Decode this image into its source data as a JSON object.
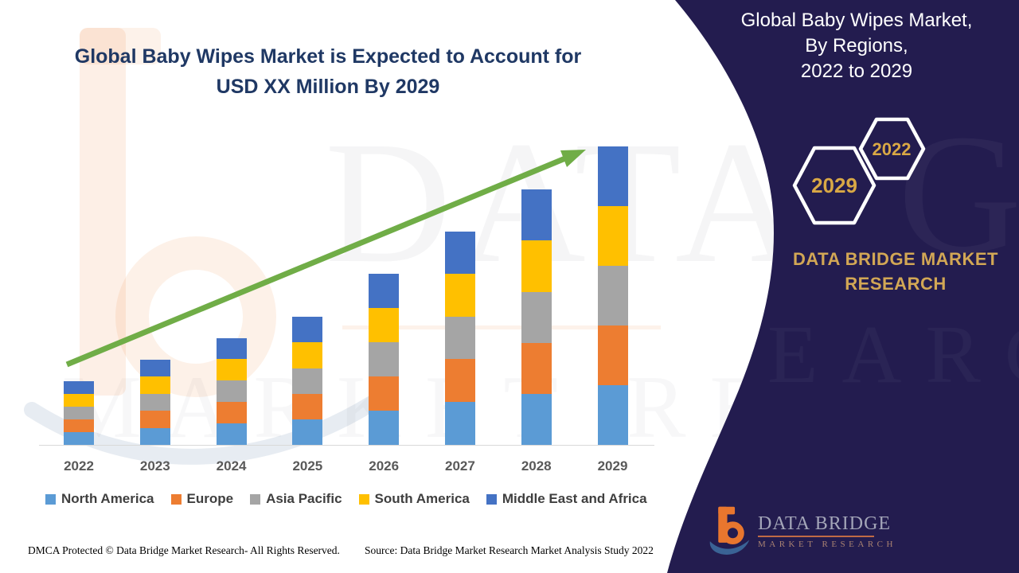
{
  "main_title": {
    "line1": "Global Baby Wipes Market is Expected to Account for",
    "line2": "USD XX Million By 2029"
  },
  "chart_data": {
    "type": "bar",
    "stacked": true,
    "title": "Global Baby Wipes Market is Expected to Account for USD XX Million By 2029",
    "categories": [
      "2022",
      "2023",
      "2024",
      "2025",
      "2026",
      "2027",
      "2028",
      "2029"
    ],
    "stack_order": "bottom-to-top",
    "series": [
      {
        "name": "North America",
        "color": "#5B9BD5",
        "values": [
          16,
          21,
          27,
          32,
          43,
          54,
          64,
          75
        ]
      },
      {
        "name": "Europe",
        "color": "#ED7D31",
        "values": [
          16,
          22,
          27,
          32,
          43,
          54,
          64,
          75
        ]
      },
      {
        "name": "Asia Pacific",
        "color": "#A5A5A5",
        "values": [
          16,
          21,
          27,
          32,
          43,
          53,
          64,
          75
        ]
      },
      {
        "name": "South America",
        "color": "#FFC000",
        "values": [
          16,
          22,
          27,
          33,
          43,
          54,
          65,
          75
        ]
      },
      {
        "name": "Middle East and Africa",
        "color": "#4472C4",
        "values": [
          16,
          21,
          26,
          32,
          43,
          53,
          64,
          75
        ]
      }
    ],
    "totals": [
      80,
      107,
      134,
      161,
      215,
      268,
      321,
      375
    ],
    "value_axis": "none shown (market values masked as XX USD Million)",
    "values_note": "relative heights estimated from pixels; all five regions shown as roughly equal shares",
    "legend_position": "bottom",
    "trend_arrow": {
      "color": "#70AD47",
      "direction": "up-right",
      "from": "2022",
      "to": "2029"
    },
    "grid": "off"
  },
  "panel": {
    "background_color": "#231C4F",
    "gold_color": "#D2A755",
    "heading": {
      "line1": "Global Baby Wipes Market,",
      "line2": "By Regions,",
      "line3": "2022 to 2029"
    },
    "hexagon_back_label": "2029",
    "hexagon_front_label": "2022",
    "brand": {
      "line1": "DATA BRIDGE MARKET",
      "line2": "RESEARCH"
    },
    "logo": {
      "title": "DATA BRIDGE",
      "subtitle": "MARKET RESEARCH"
    }
  },
  "footer": {
    "dmca": "DMCA Protected © Data Bridge Market Research- All Rights Reserved.",
    "source": "Source: Data Bridge Market Research Market Analysis Study 2022"
  },
  "watermark": {
    "row1": "DATA BRIDGE",
    "row2": "MARKET RESEARCH",
    "panel_fragment1": "GE",
    "panel_fragment2": "SEARCH"
  }
}
